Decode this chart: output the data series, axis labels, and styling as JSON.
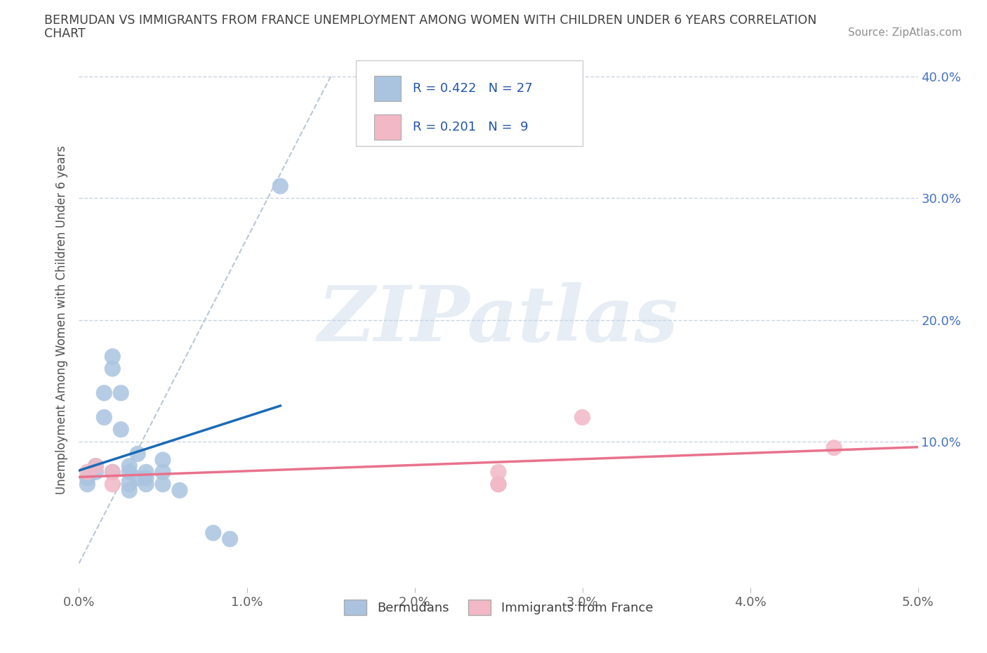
{
  "title_line1": "BERMUDAN VS IMMIGRANTS FROM FRANCE UNEMPLOYMENT AMONG WOMEN WITH CHILDREN UNDER 6 YEARS CORRELATION",
  "title_line2": "CHART",
  "source": "Source: ZipAtlas.com",
  "ylabel": "Unemployment Among Women with Children Under 6 years",
  "watermark": "ZIPatlas",
  "legend_r_blue": "0.422",
  "legend_n_blue": "27",
  "legend_r_pink": "0.201",
  "legend_n_pink": "9",
  "xlim": [
    0.0,
    0.05
  ],
  "ylim": [
    -0.02,
    0.42
  ],
  "plot_ylim": [
    0.0,
    0.4
  ],
  "xticks": [
    0.0,
    0.01,
    0.02,
    0.03,
    0.04,
    0.05
  ],
  "yticks": [
    0.0,
    0.1,
    0.2,
    0.3,
    0.4
  ],
  "xtick_labels": [
    "0.0%",
    "1.0%",
    "2.0%",
    "3.0%",
    "4.0%",
    "5.0%"
  ],
  "ytick_labels": [
    "",
    "10.0%",
    "20.0%",
    "30.0%",
    "40.0%"
  ],
  "blue_scatter_x": [
    0.0005,
    0.0005,
    0.001,
    0.001,
    0.0015,
    0.0015,
    0.002,
    0.002,
    0.002,
    0.0025,
    0.0025,
    0.003,
    0.003,
    0.003,
    0.003,
    0.0035,
    0.0035,
    0.004,
    0.004,
    0.004,
    0.005,
    0.005,
    0.005,
    0.006,
    0.008,
    0.009,
    0.012
  ],
  "blue_scatter_y": [
    0.07,
    0.065,
    0.075,
    0.08,
    0.14,
    0.12,
    0.16,
    0.17,
    0.075,
    0.14,
    0.11,
    0.075,
    0.065,
    0.06,
    0.08,
    0.09,
    0.07,
    0.075,
    0.07,
    0.065,
    0.085,
    0.075,
    0.065,
    0.06,
    0.025,
    0.02,
    0.31
  ],
  "pink_scatter_x": [
    0.0005,
    0.001,
    0.002,
    0.002,
    0.025,
    0.025,
    0.045,
    0.03,
    0.025
  ],
  "pink_scatter_y": [
    0.075,
    0.08,
    0.075,
    0.065,
    0.075,
    0.065,
    0.095,
    0.12,
    0.065
  ],
  "blue_color": "#aac4e0",
  "pink_color": "#f2b8c6",
  "blue_line_color": "#1a6bb5",
  "pink_line_color": "#e8728c",
  "dashed_line_color": "#b8c8d8",
  "grid_color": "#c8d4e4",
  "background_color": "#ffffff",
  "title_color": "#404040",
  "source_color": "#909090",
  "ylabel_color": "#505050",
  "xtick_color": "#606060",
  "ytick_right_color": "#4472c4"
}
